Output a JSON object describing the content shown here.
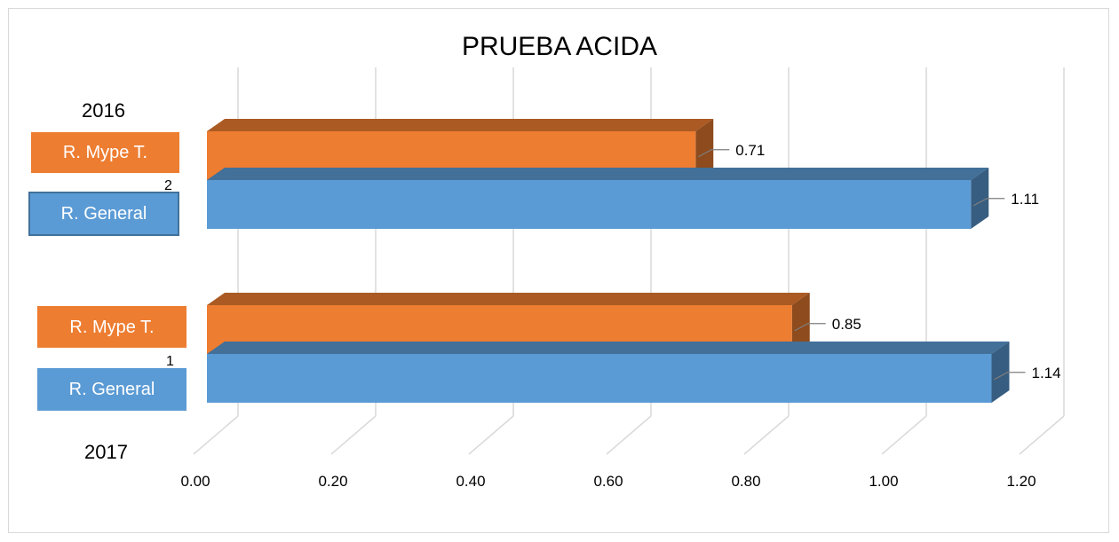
{
  "chart_data": {
    "type": "bar",
    "orientation": "horizontal",
    "style": "3d",
    "title": "PRUEBA ACIDA",
    "categories": [
      "2",
      "1"
    ],
    "series": [
      {
        "name": "R. Mype T.",
        "color": "#ed7d31",
        "values": [
          0.71,
          0.85
        ]
      },
      {
        "name": "R. General",
        "color": "#5b9bd5",
        "values": [
          1.11,
          1.14
        ]
      }
    ],
    "data_labels": [
      [
        "0.71",
        "1.11"
      ],
      [
        "0.85",
        "1.14"
      ]
    ],
    "xlim": [
      0,
      1.2
    ],
    "xticks": [
      "0.00",
      "0.20",
      "0.40",
      "0.60",
      "0.80",
      "1.00",
      "1.20"
    ],
    "grid": true
  },
  "overlay_labels": {
    "year_top": "2016",
    "year_bottom": "2017",
    "mype_label": "R. Mype T.",
    "general_label": "R. General"
  }
}
